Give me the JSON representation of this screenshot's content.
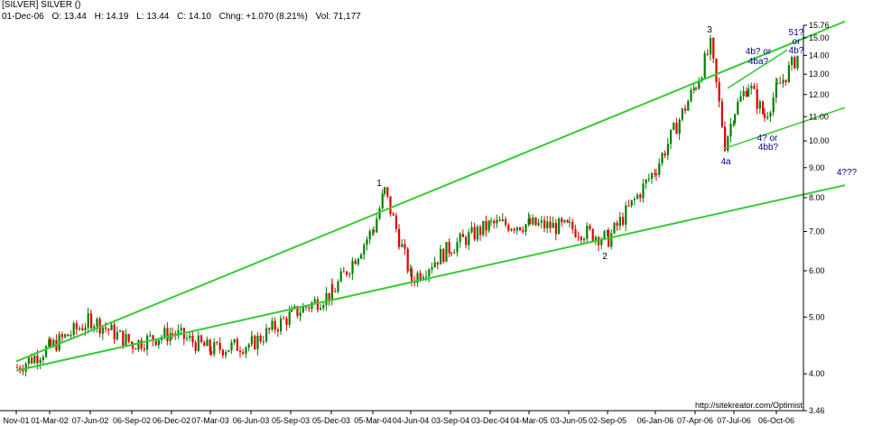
{
  "header": {
    "title": "[SILVER] SILVER ()",
    "date": "01-Dec-06",
    "open": "O: 13.44",
    "high": "H: 14.19",
    "low": "L: 13.44",
    "close": "C: 14.10",
    "change": "Chng: +1.070 (8.21%)",
    "volume": "Vol: 71,177"
  },
  "credit": "http://sitekreator.com/Optimist",
  "colors": {
    "up": "#008000",
    "down": "#e00000",
    "trend": "#33cc33",
    "label": "#000080"
  },
  "chart_data": {
    "type": "candlestick",
    "yscale": "log",
    "ylim": [
      3.46,
      15.76
    ],
    "yticks": [
      "15.76",
      "15.00",
      "14.00",
      "13.00",
      "12.00",
      "11.00",
      "10.00",
      "9.00",
      "8.00",
      "7.00",
      "6.00",
      "5.00",
      "4.00",
      "3.46"
    ],
    "xlabels": [
      "Nov-01",
      "01-Mar-02",
      "07-Jun-02",
      "06-Sep-02",
      "06-Dec-02",
      "07-Mar-03",
      "06-Jun-03",
      "05-Sep-03",
      "05-Dec-03",
      "05-Mar-04",
      "04-Jun-04",
      "03-Sep-04",
      "03-Dec-04",
      "04-Mar-05",
      "03-Jun-05",
      "02-Sep-05",
      "06-Jan-06",
      "07-Apr-06",
      "07-Jul-06",
      "06-Oct-06"
    ],
    "approx_closes": [
      {
        "date": "Nov-01",
        "value": 4.1
      },
      {
        "date": "01-Mar-02",
        "value": 4.45
      },
      {
        "date": "07-Jun-02",
        "value": 4.95
      },
      {
        "date": "06-Sep-02",
        "value": 4.5
      },
      {
        "date": "06-Dec-02",
        "value": 4.7
      },
      {
        "date": "07-Mar-03",
        "value": 4.4
      },
      {
        "date": "06-Jun-03",
        "value": 4.5
      },
      {
        "date": "05-Sep-03",
        "value": 5.05
      },
      {
        "date": "05-Dec-03",
        "value": 5.5
      },
      {
        "date": "05-Mar-04",
        "value": 7.1
      },
      {
        "date": "Apr-04",
        "value": 8.2
      },
      {
        "date": "04-Jun-04",
        "value": 5.8
      },
      {
        "date": "03-Sep-04",
        "value": 6.6
      },
      {
        "date": "03-Dec-04",
        "value": 7.2
      },
      {
        "date": "04-Mar-05",
        "value": 7.2
      },
      {
        "date": "03-Jun-05",
        "value": 7.1
      },
      {
        "date": "02-Sep-05",
        "value": 6.8
      },
      {
        "date": "06-Jan-06",
        "value": 9.0
      },
      {
        "date": "07-Apr-06",
        "value": 12.5
      },
      {
        "date": "May-06",
        "value": 14.5
      },
      {
        "date": "Jun-06",
        "value": 9.9
      },
      {
        "date": "07-Jul-06",
        "value": 11.3
      },
      {
        "date": "Aug-06",
        "value": 12.5
      },
      {
        "date": "Sep-06",
        "value": 11.0
      },
      {
        "date": "06-Oct-06",
        "value": 12.3
      },
      {
        "date": "01-Dec-06",
        "value": 14.1
      }
    ],
    "annotations": [
      {
        "text": "1"
      },
      {
        "text": "2"
      },
      {
        "text": "3"
      },
      {
        "text": "4a"
      },
      {
        "text": "4b? or"
      },
      {
        "text": "4ba?"
      },
      {
        "text": "4? or"
      },
      {
        "text": "4bb?"
      },
      {
        "text": "51?"
      },
      {
        "text": "or"
      },
      {
        "text": "4b?"
      },
      {
        "text": "4???"
      }
    ],
    "trendlines": [
      {
        "name": "upper channel",
        "from": {
          "date": "Nov-01",
          "value": 4.2
        },
        "to": {
          "date": "Dec-06",
          "value": 16.0
        }
      },
      {
        "name": "lower channel",
        "from": {
          "date": "Nov-01",
          "value": 4.05
        },
        "to": {
          "date": "Dec-06",
          "value": 8.4
        }
      },
      {
        "name": "wave 4 upper",
        "from": {
          "date": "Jul-06",
          "value": 12.3
        },
        "to": {
          "date": "Nov-06",
          "value": 14.3
        }
      },
      {
        "name": "wave 4 lower",
        "from": {
          "date": "Jun-06",
          "value": 9.7
        },
        "to": {
          "date": "Dec-06",
          "value": 11.4
        }
      }
    ]
  }
}
